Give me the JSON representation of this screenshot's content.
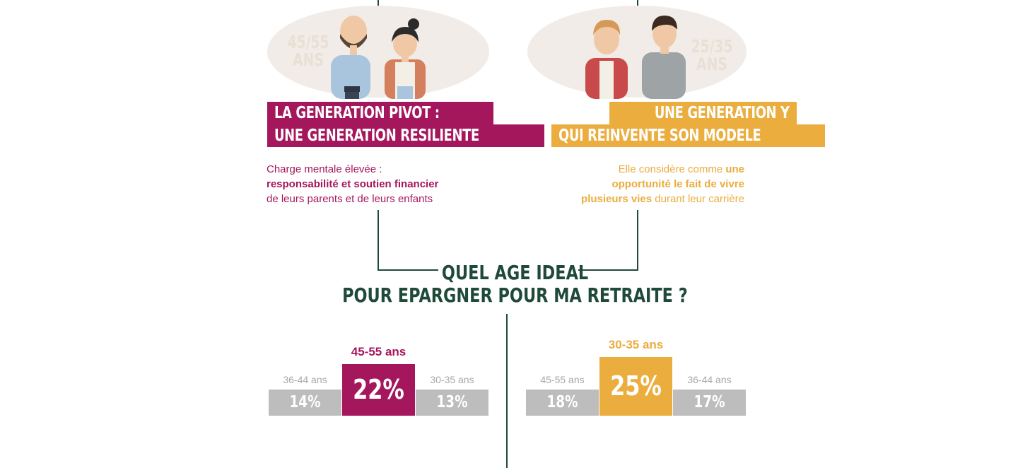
{
  "colors": {
    "pivot": "#a5175c",
    "genY": "#eaad3e",
    "dark_green": "#1f4a3a",
    "gray_bar": "#bdbdbd",
    "ellipse": "#f1ece7"
  },
  "left": {
    "age_label": [
      "45/55",
      "ANS"
    ],
    "banner": [
      "LA GENERATION PIVOT :",
      "UNE GENERATION RESILIENTE"
    ],
    "desc": {
      "l1": "Charge mentale élevée :",
      "l2": "responsabilité et soutien financier",
      "l3": "de leurs parents et de leurs enfants"
    }
  },
  "right": {
    "age_label": [
      "25/35",
      "ANS"
    ],
    "banner": [
      "UNE GENERATION Y",
      "QUI REINVENTE SON MODELE"
    ],
    "desc": {
      "l1a": "Elle considère comme ",
      "l1b": "une",
      "l2": "opportunité le fait de vivre",
      "l3a": "plusieurs vies",
      "l3b": " durant leur carrière"
    }
  },
  "title": [
    "QUEL AGE IDEAL",
    "POUR EPARGNER POUR MA RETRAITE ?"
  ],
  "chart_data": [
    {
      "type": "bar",
      "categories": [
        "36-44 ans",
        "45-55 ans",
        "30-35 ans"
      ],
      "values": [
        14,
        22,
        13
      ],
      "value_labels": [
        "14%",
        "22%",
        "13%"
      ],
      "highlight_index": 1,
      "highlight_color": "#a5175c"
    },
    {
      "type": "bar",
      "categories": [
        "45-55 ans",
        "30-35 ans",
        "36-44 ans"
      ],
      "values": [
        18,
        25,
        17
      ],
      "value_labels": [
        "18%",
        "25%",
        "17%"
      ],
      "highlight_index": 1,
      "highlight_color": "#eaad3e"
    }
  ]
}
